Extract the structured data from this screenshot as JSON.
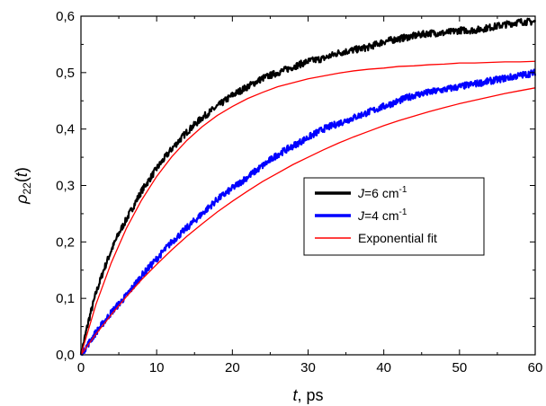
{
  "chart_data": {
    "type": "line",
    "title": "",
    "xlabel": "t, ps",
    "xlabel_italic_part": "t",
    "xlabel_rest": ", ps",
    "ylabel": "ρ22(t)",
    "ylabel_rho": "ρ",
    "ylabel_sub": "22",
    "ylabel_paren_open": "(",
    "ylabel_var": "t",
    "ylabel_paren_close": ")",
    "xlim": [
      0,
      60
    ],
    "ylim": [
      0,
      0.6
    ],
    "xticks": [
      0,
      10,
      20,
      30,
      40,
      50,
      60
    ],
    "xtick_labels": [
      "0",
      "10",
      "20",
      "30",
      "40",
      "50",
      "60"
    ],
    "yticks": [
      0,
      0.1,
      0.2,
      0.3,
      0.4,
      0.5,
      0.6
    ],
    "ytick_labels": [
      "0,0",
      "0,1",
      "0,2",
      "0,3",
      "0,4",
      "0,5",
      "0,6"
    ],
    "grid": false,
    "legend_position": "center-right",
    "legend": [
      {
        "series": "J6",
        "label_prefix": "J",
        "label_mid": "=6 cm",
        "label_sup": "-1"
      },
      {
        "series": "J4",
        "label_prefix": "J",
        "label_mid": "=4 cm",
        "label_sup": "-1"
      },
      {
        "series": "fit",
        "label_prefix": "",
        "label_mid": "Exponential fit",
        "label_sup": ""
      }
    ],
    "series": [
      {
        "id": "J6",
        "name": "J=6 cm-1",
        "color": "#000000",
        "style": "noisy-data",
        "x": [
          0,
          1,
          2,
          3,
          4,
          5,
          6,
          7,
          8,
          9,
          10,
          12,
          14,
          16,
          18,
          20,
          22,
          24,
          26,
          28,
          30,
          32,
          34,
          36,
          38,
          40,
          42,
          44,
          46,
          48,
          50,
          52,
          54,
          56,
          58,
          60
        ],
        "y": [
          0,
          0.06,
          0.11,
          0.15,
          0.185,
          0.215,
          0.24,
          0.265,
          0.29,
          0.31,
          0.33,
          0.365,
          0.395,
          0.42,
          0.44,
          0.46,
          0.475,
          0.49,
          0.5,
          0.51,
          0.52,
          0.525,
          0.535,
          0.54,
          0.545,
          0.555,
          0.56,
          0.565,
          0.57,
          0.57,
          0.575,
          0.575,
          0.58,
          0.585,
          0.59,
          0.59
        ]
      },
      {
        "id": "J4",
        "name": "J=4 cm-1",
        "color": "#0000ff",
        "style": "noisy-data",
        "x": [
          0,
          2,
          4,
          6,
          8,
          10,
          12,
          14,
          16,
          18,
          20,
          22,
          24,
          26,
          28,
          30,
          32,
          34,
          36,
          38,
          40,
          42,
          44,
          46,
          48,
          50,
          52,
          54,
          56,
          58,
          60
        ],
        "y": [
          0,
          0.04,
          0.075,
          0.105,
          0.14,
          0.17,
          0.2,
          0.225,
          0.25,
          0.275,
          0.295,
          0.315,
          0.335,
          0.355,
          0.37,
          0.385,
          0.4,
          0.41,
          0.42,
          0.43,
          0.44,
          0.45,
          0.46,
          0.465,
          0.47,
          0.475,
          0.48,
          0.485,
          0.49,
          0.495,
          0.5
        ]
      },
      {
        "id": "fit6",
        "name": "Exponential fit",
        "color": "#ff0000",
        "style": "fit",
        "x": [
          0,
          2,
          4,
          6,
          8,
          10,
          12,
          14,
          16,
          18,
          20,
          22,
          24,
          26,
          28,
          30,
          32,
          34,
          36,
          38,
          40,
          42,
          44,
          46,
          48,
          50,
          52,
          54,
          56,
          58,
          60
        ],
        "y": [
          0,
          0.09,
          0.163,
          0.224,
          0.274,
          0.316,
          0.351,
          0.38,
          0.404,
          0.424,
          0.44,
          0.454,
          0.465,
          0.475,
          0.482,
          0.489,
          0.494,
          0.499,
          0.503,
          0.506,
          0.508,
          0.511,
          0.512,
          0.514,
          0.515,
          0.517,
          0.517,
          0.518,
          0.519,
          0.519,
          0.52
        ]
      },
      {
        "id": "fit4",
        "name": "Exponential fit",
        "color": "#ff0000",
        "style": "fit",
        "x": [
          0,
          2,
          4,
          6,
          8,
          10,
          12,
          14,
          16,
          18,
          20,
          22,
          24,
          26,
          28,
          30,
          32,
          34,
          36,
          38,
          40,
          42,
          44,
          46,
          48,
          50,
          52,
          54,
          56,
          58,
          60
        ],
        "y": [
          0,
          0.037,
          0.071,
          0.103,
          0.133,
          0.16,
          0.186,
          0.21,
          0.232,
          0.253,
          0.272,
          0.29,
          0.307,
          0.322,
          0.337,
          0.35,
          0.363,
          0.375,
          0.386,
          0.396,
          0.406,
          0.415,
          0.423,
          0.431,
          0.438,
          0.445,
          0.451,
          0.457,
          0.463,
          0.468,
          0.473
        ]
      }
    ]
  }
}
